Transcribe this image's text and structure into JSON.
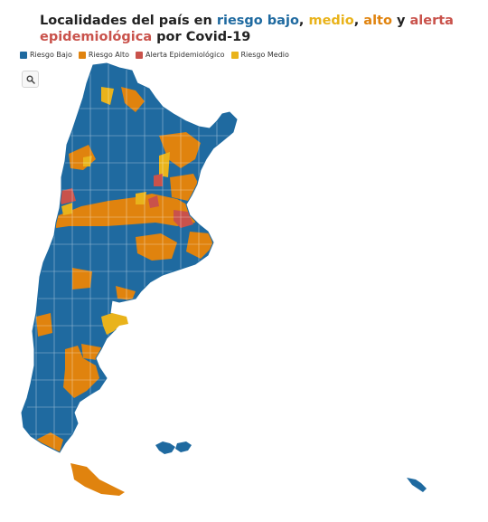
{
  "title": {
    "prefix": "Localidades del país en ",
    "bajo": "riesgo bajo",
    "sep1": ", ",
    "medio": "medio",
    "sep2": ", ",
    "alto": "alto",
    "sep3": " y ",
    "alerta": "alerta epidemiológica",
    "suffix": " por Covid-19"
  },
  "legend": [
    {
      "label": "Riesgo Bajo",
      "color": "#1f6aa0"
    },
    {
      "label": "Riesgo Alto",
      "color": "#e0830e"
    },
    {
      "label": "Alerta Epidemiológico",
      "color": "#c9524b"
    },
    {
      "label": "Riesgo Medio",
      "color": "#e9b31b"
    }
  ],
  "search": {
    "icon": "search-icon"
  }
}
